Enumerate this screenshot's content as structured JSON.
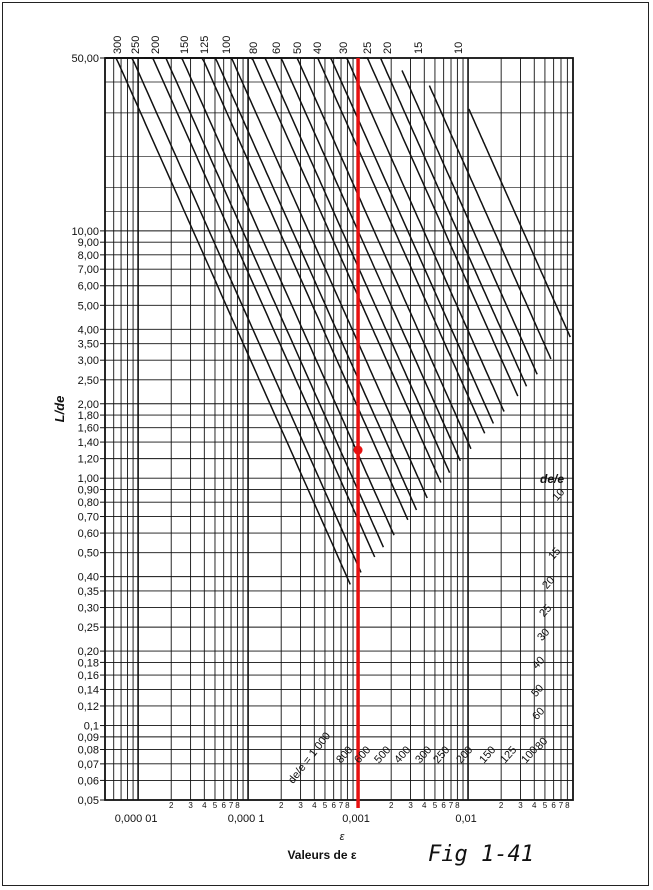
{
  "chart_data": {
    "type": "line",
    "title": "",
    "xlabel": "Valeurs de ε",
    "xlabel_symbol": "ε",
    "ylabel": "L/de",
    "x_scale": "log",
    "y_scale": "log",
    "xlim": [
      5e-06,
      0.09
    ],
    "ylim": [
      0.05,
      50
    ],
    "x_major_labels": [
      {
        "value": 1e-05,
        "label": "0,000 01"
      },
      {
        "value": 0.0001,
        "label": "0,000 1"
      },
      {
        "value": 0.001,
        "label": "0,001"
      },
      {
        "value": 0.01,
        "label": "0,01"
      }
    ],
    "x_minor_labels": [
      {
        "value": 2e-05,
        "label": "2"
      },
      {
        "value": 3e-05,
        "label": "3"
      },
      {
        "value": 4e-05,
        "label": "4"
      },
      {
        "value": 5e-05,
        "label": "5"
      },
      {
        "value": 6e-05,
        "label": "6"
      },
      {
        "value": 7e-05,
        "label": "7"
      },
      {
        "value": 8e-05,
        "label": "8"
      },
      {
        "value": 0.0002,
        "label": "2"
      },
      {
        "value": 0.0003,
        "label": "3"
      },
      {
        "value": 0.0004,
        "label": "4"
      },
      {
        "value": 0.0005,
        "label": "5"
      },
      {
        "value": 0.0006,
        "label": "6"
      },
      {
        "value": 0.0007,
        "label": "7"
      },
      {
        "value": 0.0008,
        "label": "8"
      },
      {
        "value": 0.002,
        "label": "2"
      },
      {
        "value": 0.003,
        "label": "3"
      },
      {
        "value": 0.004,
        "label": "4"
      },
      {
        "value": 0.005,
        "label": "5"
      },
      {
        "value": 0.006,
        "label": "6"
      },
      {
        "value": 0.007,
        "label": "7"
      },
      {
        "value": 0.008,
        "label": "8"
      },
      {
        "value": 0.02,
        "label": "2"
      },
      {
        "value": 0.03,
        "label": "3"
      },
      {
        "value": 0.04,
        "label": "4"
      },
      {
        "value": 0.05,
        "label": "5"
      },
      {
        "value": 0.06,
        "label": "6"
      },
      {
        "value": 0.07,
        "label": "7"
      },
      {
        "value": 0.08,
        "label": "8"
      }
    ],
    "y_ticks": [
      {
        "value": 50,
        "label": "50,00"
      },
      {
        "value": 10,
        "label": "10,00"
      },
      {
        "value": 9,
        "label": "9,00"
      },
      {
        "value": 8,
        "label": "8,00"
      },
      {
        "value": 7,
        "label": "7,00"
      },
      {
        "value": 6,
        "label": "6,00"
      },
      {
        "value": 5,
        "label": "5,00"
      },
      {
        "value": 4,
        "label": "4,00"
      },
      {
        "value": 3.5,
        "label": "3,50"
      },
      {
        "value": 3,
        "label": "3,00"
      },
      {
        "value": 2.5,
        "label": "2,50"
      },
      {
        "value": 2,
        "label": "2,00"
      },
      {
        "value": 1.8,
        "label": "1,80"
      },
      {
        "value": 1.6,
        "label": "1,60"
      },
      {
        "value": 1.4,
        "label": "1,40"
      },
      {
        "value": 1.2,
        "label": "1,20"
      },
      {
        "value": 1,
        "label": "1,00"
      },
      {
        "value": 0.9,
        "label": "0,90"
      },
      {
        "value": 0.8,
        "label": "0,80"
      },
      {
        "value": 0.7,
        "label": "0,70"
      },
      {
        "value": 0.6,
        "label": "0,60"
      },
      {
        "value": 0.5,
        "label": "0,50"
      },
      {
        "value": 0.4,
        "label": "0,40"
      },
      {
        "value": 0.35,
        "label": "0,35"
      },
      {
        "value": 0.3,
        "label": "0,30"
      },
      {
        "value": 0.25,
        "label": "0,25"
      },
      {
        "value": 0.2,
        "label": "0,20"
      },
      {
        "value": 0.18,
        "label": "0,18"
      },
      {
        "value": 0.16,
        "label": "0,16"
      },
      {
        "value": 0.14,
        "label": "0,14"
      },
      {
        "value": 0.12,
        "label": "0,12"
      },
      {
        "value": 0.1,
        "label": "0,1"
      },
      {
        "value": 0.09,
        "label": "0,09"
      },
      {
        "value": 0.08,
        "label": "0,08"
      },
      {
        "value": 0.07,
        "label": "0,07"
      },
      {
        "value": 0.06,
        "label": "0,06"
      },
      {
        "value": 0.05,
        "label": "0,05"
      }
    ],
    "top_labels": [
      "300",
      "250",
      "200",
      "150",
      "125",
      "100",
      "80",
      "60",
      "50",
      "40",
      "30",
      "25",
      "20",
      "15",
      "10"
    ],
    "right_labels": [
      "10",
      "15",
      "20",
      "25",
      "30",
      "40",
      "50",
      "60",
      "80",
      "100",
      "125",
      "150",
      "200",
      "250",
      "300",
      "400",
      "500",
      "600",
      "800"
    ],
    "bottom_left_label": "de/e = 1 000",
    "right_header": "de/e",
    "series_de_over_e": [
      10,
      15,
      20,
      25,
      30,
      40,
      50,
      60,
      80,
      100,
      125,
      150,
      200,
      250,
      300,
      400,
      500,
      600,
      800,
      1000
    ],
    "marker": {
      "x": 0.001,
      "y": 1.3,
      "color": "#e81010"
    },
    "grid": true,
    "line_color": "#111111"
  },
  "caption": "Fig 1-41"
}
